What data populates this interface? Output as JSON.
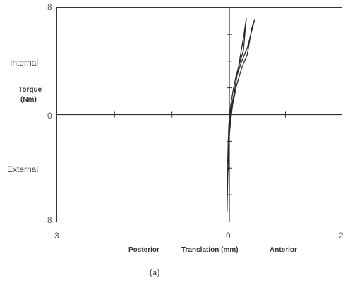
{
  "chart_data": {
    "type": "line",
    "caption": "(a)",
    "xlabel_left": "Posterior",
    "xlabel": "Translation (mm)",
    "xlabel_right": "Anterior",
    "ylabel_top": "Internal",
    "ylabel": "Torque",
    "ylabel_unit": "(Nm)",
    "ylabel_bottom": "External",
    "xlim": [
      -3,
      2
    ],
    "ylim": [
      -8,
      8
    ],
    "x_tick_labels": {
      "left": "3",
      "center": "0",
      "right": "2"
    },
    "y_tick_labels": {
      "top": "8",
      "center": "0",
      "bottom": "8"
    },
    "grid": false,
    "series": [
      {
        "x": [
          -0.04,
          -0.03,
          -0.02,
          0.0,
          0.02,
          0.05,
          0.1,
          0.18,
          0.26,
          0.3,
          0.25,
          0.18,
          0.12,
          0.07,
          0.03,
          0.01,
          -0.01,
          -0.02,
          -0.03,
          -0.02,
          -0.01,
          0.0,
          0.03,
          0.08,
          0.14,
          0.22,
          0.32,
          0.45,
          0.4,
          0.32,
          0.22,
          0.13,
          0.07,
          0.03,
          0.0,
          -0.02,
          -0.03,
          -0.04
        ],
        "y": [
          -7.3,
          -5.0,
          -3.2,
          -1.5,
          -0.6,
          0.5,
          2.0,
          4.0,
          6.0,
          7.2,
          4.8,
          3.8,
          2.9,
          1.9,
          0.9,
          0.2,
          -0.8,
          -2.0,
          -3.5,
          -4.2,
          -1.0,
          -0.3,
          0.5,
          1.5,
          3.0,
          4.0,
          5.0,
          7.1,
          6.5,
          4.5,
          3.5,
          2.2,
          1.0,
          0.2,
          -1.0,
          -2.5,
          -4.5,
          -7.0
        ]
      }
    ]
  }
}
